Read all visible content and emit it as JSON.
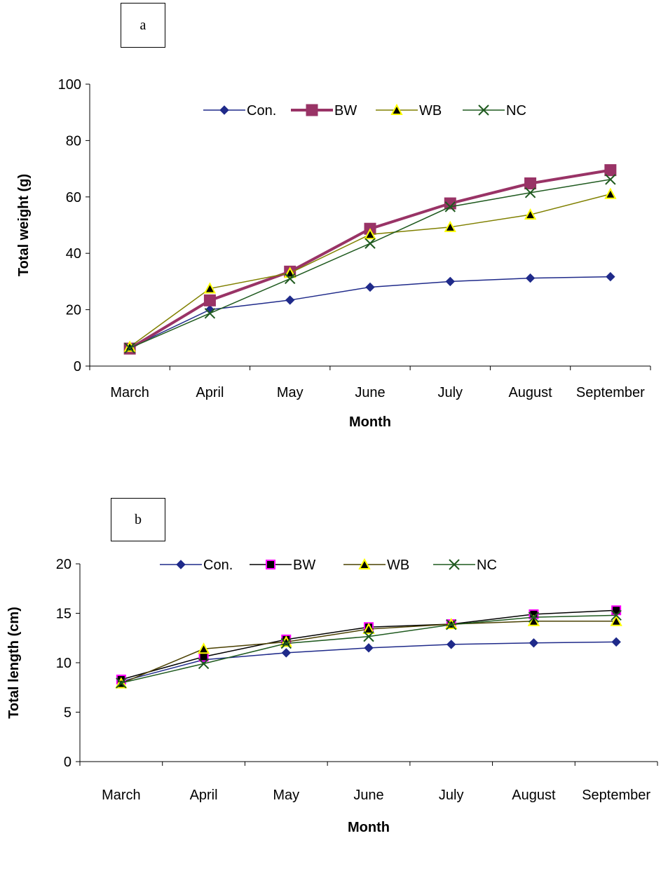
{
  "panels": {
    "a": {
      "label": "a"
    },
    "b": {
      "label": "b"
    }
  },
  "chart_data": [
    {
      "type": "line",
      "panel": "a",
      "categories": [
        "March",
        "April",
        "May",
        "June",
        "July",
        "August",
        "September"
      ],
      "xlabel": "Month",
      "ylabel": "Total weight (g)",
      "ylim": [
        0,
        100
      ],
      "yticks": [
        0,
        20,
        40,
        60,
        80,
        100
      ],
      "legend_position": "top",
      "series": [
        {
          "name": "Con.",
          "values": [
            6.5,
            20,
            23.4,
            28,
            30,
            31.2,
            31.7
          ],
          "color": "#1f2a8a",
          "marker": "diamond",
          "bold": false
        },
        {
          "name": "BW",
          "values": [
            6.2,
            23.3,
            33.5,
            48.7,
            57.7,
            64.8,
            69.5
          ],
          "color": "#993366",
          "marker": "square",
          "bold": true
        },
        {
          "name": "WB",
          "values": [
            6.8,
            27.5,
            33,
            46.7,
            49.3,
            53.7,
            61
          ],
          "color": "#808000",
          "marker": "triangle",
          "bold": false
        },
        {
          "name": "NC",
          "values": [
            6.4,
            18.7,
            31,
            43.5,
            56.5,
            61.5,
            66.2
          ],
          "color": "#1f5a1f",
          "marker": "x",
          "bold": false
        }
      ]
    },
    {
      "type": "line",
      "panel": "b",
      "categories": [
        "March",
        "April",
        "May",
        "June",
        "July",
        "August",
        "September"
      ],
      "xlabel": "Month",
      "ylabel": "Total length (cm)",
      "ylim": [
        0,
        20
      ],
      "yticks": [
        0,
        5,
        10,
        15,
        20
      ],
      "legend_position": "top",
      "series": [
        {
          "name": "Con.",
          "values": [
            8.1,
            10.3,
            11,
            11.5,
            11.85,
            12,
            12.1
          ],
          "color": "#1f2a8a",
          "marker": "diamond",
          "bold": false
        },
        {
          "name": "BW",
          "values": [
            8.3,
            10.6,
            12.35,
            13.6,
            13.9,
            14.9,
            15.3
          ],
          "color": "#000000",
          "marker": "square-magenta",
          "bold": false
        },
        {
          "name": "WB",
          "values": [
            7.9,
            11.4,
            12.1,
            13.4,
            13.9,
            14.2,
            14.2
          ],
          "color": "#4a4000",
          "marker": "triangle",
          "bold": false
        },
        {
          "name": "NC",
          "values": [
            7.95,
            9.9,
            11.95,
            12.65,
            13.85,
            14.6,
            14.8
          ],
          "color": "#1f5a1f",
          "marker": "x",
          "bold": false
        }
      ]
    }
  ]
}
